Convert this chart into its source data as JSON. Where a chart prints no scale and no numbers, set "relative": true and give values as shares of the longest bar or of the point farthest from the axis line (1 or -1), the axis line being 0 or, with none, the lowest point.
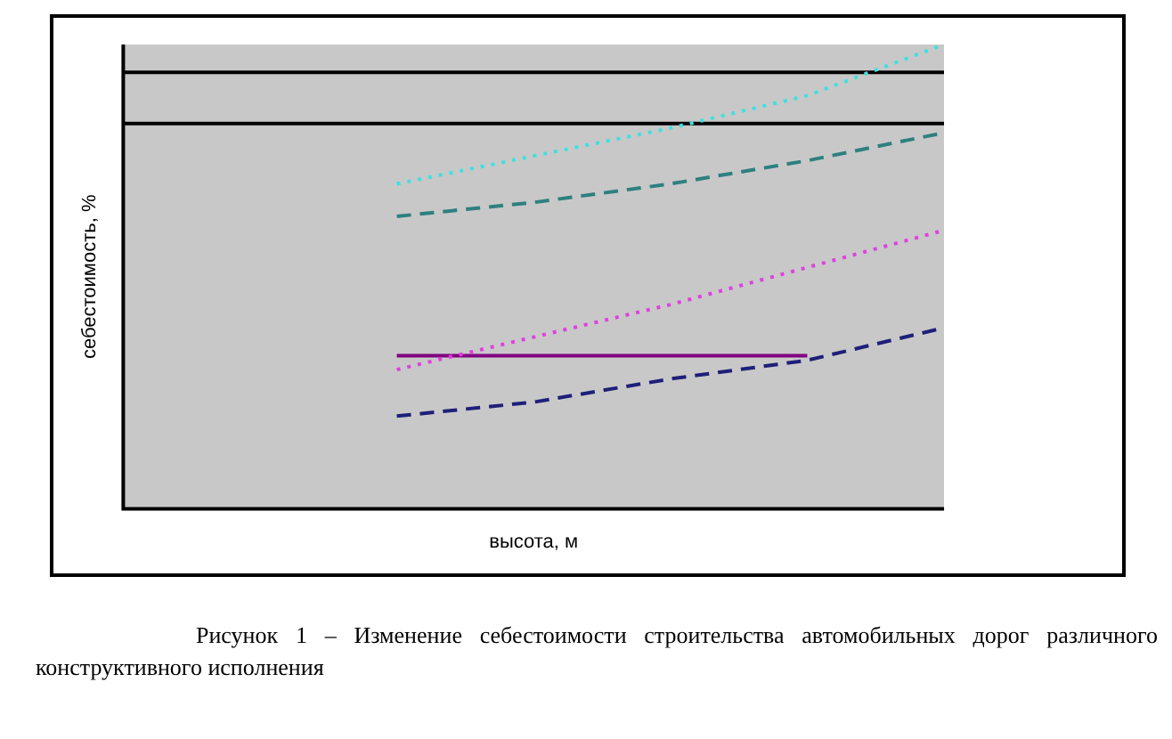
{
  "chart_data": {
    "type": "line",
    "relative": true,
    "xlabel": "высота, м",
    "ylabel": "себестоимость, %",
    "categories": [
      null,
      null,
      null,
      null,
      null,
      null,
      null
    ],
    "series": [
      {
        "color": "#1f1f7a",
        "line_style": "dashed",
        "values": [
          null,
          null,
          0.2,
          0.23,
          0.28,
          0.32,
          0.39
        ]
      },
      {
        "color": "#e040e0",
        "line_style": "dotted",
        "values": [
          null,
          null,
          0.3,
          0.37,
          0.44,
          0.52,
          0.6
        ]
      },
      {
        "color": "#2f8080",
        "line_style": "dashed",
        "values": [
          null,
          null,
          0.63,
          0.66,
          0.7,
          0.75,
          0.81
        ]
      },
      {
        "color": "#40e0e0",
        "line_style": "dotted",
        "values": [
          null,
          null,
          0.7,
          0.76,
          0.82,
          0.89,
          1
        ]
      },
      {
        "color": "#800080",
        "line_style": "solid",
        "values": [
          null,
          null,
          0.33,
          0.33,
          0.33,
          0.33,
          null
        ]
      }
    ],
    "ref_lines": [
      {
        "axis": "y",
        "value": 0.94,
        "color": "#000000"
      },
      {
        "axis": "y",
        "value": 0.83,
        "color": "#000000"
      }
    ],
    "annotations": [
      "Рисунок 1 – Изменение себестоимости строительства автомобильных дорог различного конструктивного исполнения"
    ],
    "legend": false,
    "grid": false,
    "tick_labels": false
  }
}
